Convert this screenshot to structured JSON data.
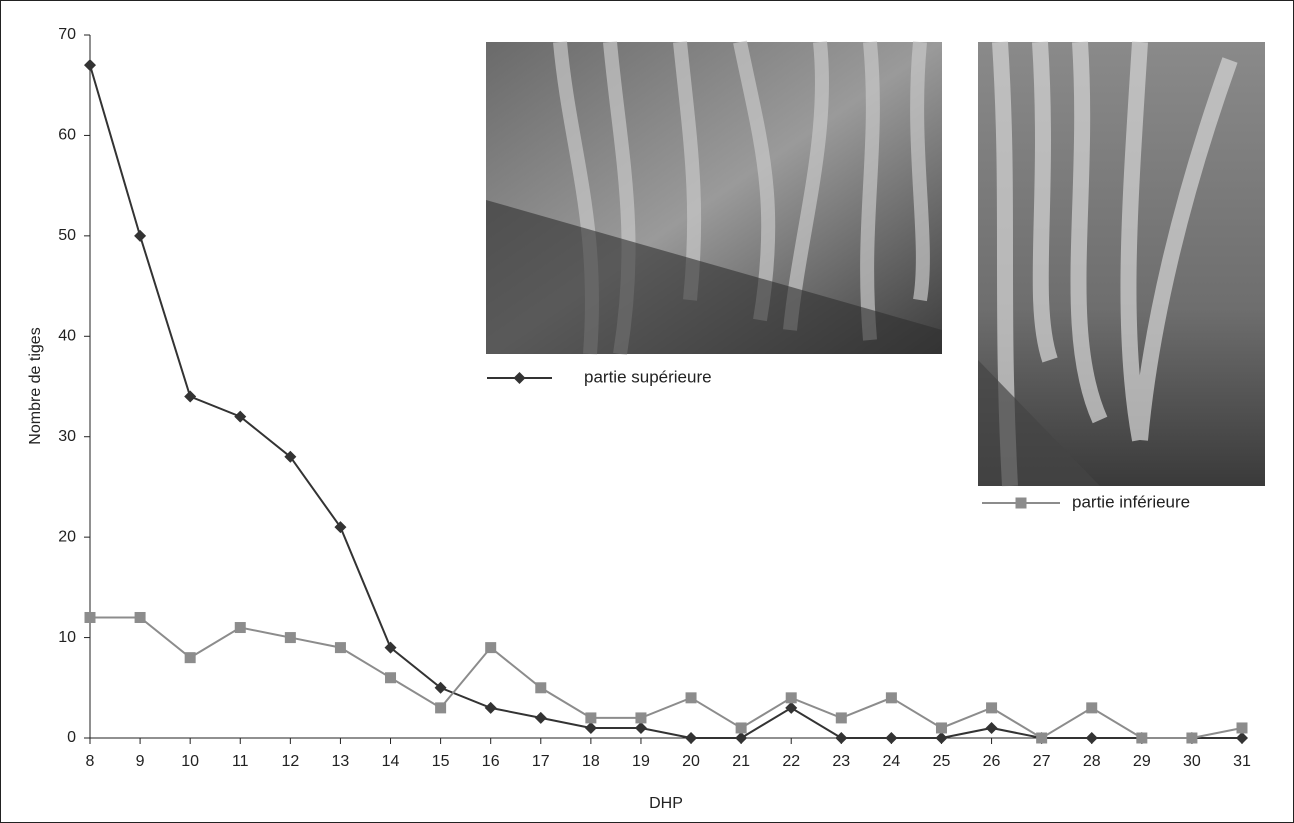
{
  "chart_data": {
    "type": "line",
    "x_label": "DHP",
    "y_label": "Nombre de tiges",
    "x": [
      8,
      9,
      10,
      11,
      12,
      13,
      14,
      15,
      16,
      17,
      18,
      19,
      20,
      21,
      22,
      23,
      24,
      25,
      26,
      27,
      28,
      29,
      30,
      31
    ],
    "series": [
      {
        "name": "partie supérieure",
        "color": "#333333",
        "marker": "diamond",
        "values": [
          67,
          50,
          34,
          32,
          28,
          21,
          9,
          5,
          3,
          2,
          1,
          1,
          0,
          0,
          3,
          0,
          0,
          0,
          1,
          0,
          0,
          0,
          0,
          0
        ]
      },
      {
        "name": "partie inférieure",
        "color": "#8c8c8c",
        "marker": "square",
        "values": [
          12,
          12,
          8,
          11,
          10,
          9,
          6,
          3,
          9,
          5,
          2,
          2,
          4,
          1,
          4,
          2,
          4,
          1,
          3,
          0,
          3,
          0,
          0,
          1
        ]
      }
    ],
    "xlim": [
      8,
      31
    ],
    "xticks": [
      8,
      9,
      10,
      11,
      12,
      13,
      14,
      15,
      16,
      17,
      18,
      19,
      20,
      21,
      22,
      23,
      24,
      25,
      26,
      27,
      28,
      29,
      30,
      31
    ],
    "ylim": [
      0,
      70
    ],
    "yticks": [
      0,
      10,
      20,
      30,
      40,
      50,
      60,
      70
    ],
    "grid": false
  }
}
